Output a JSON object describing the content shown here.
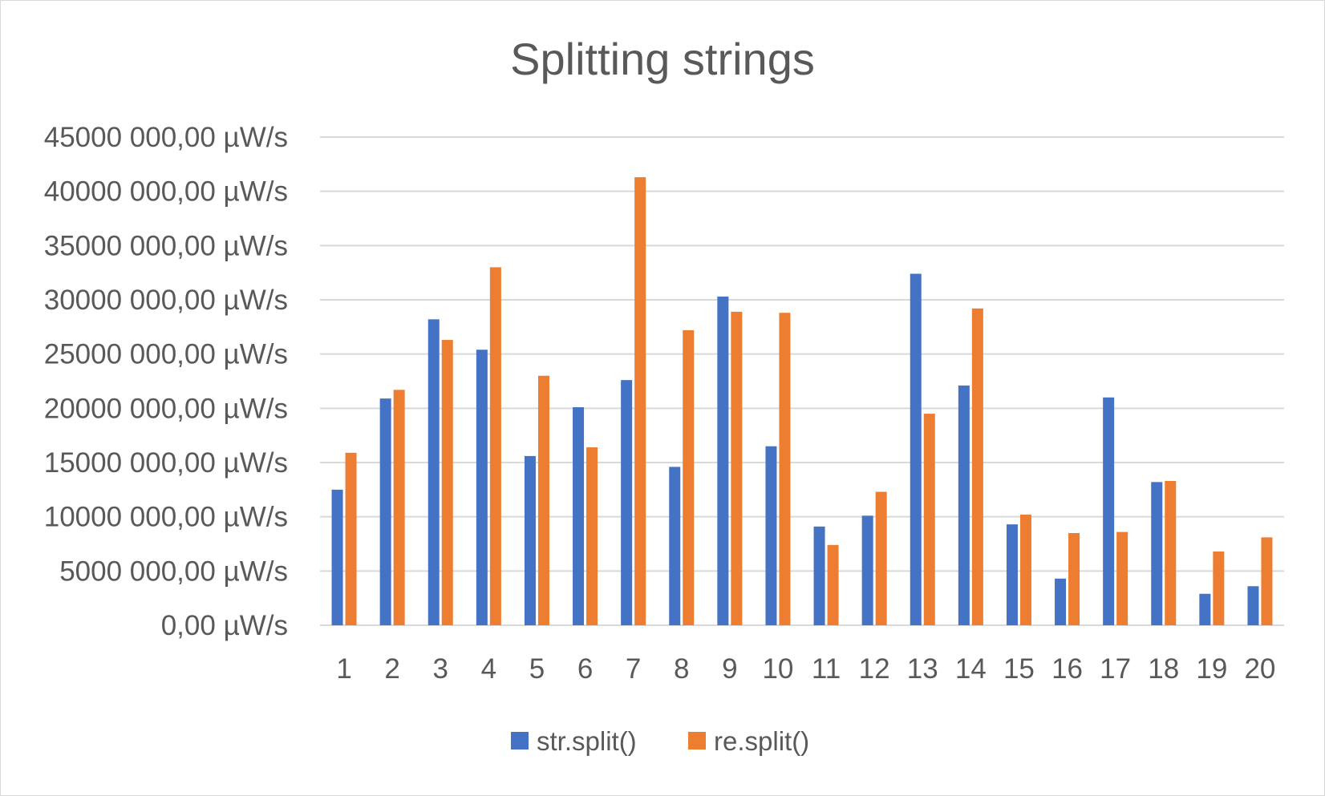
{
  "chart_data": {
    "type": "bar",
    "title": "Splitting strings",
    "xlabel": "",
    "ylabel": "",
    "categories": [
      "1",
      "2",
      "3",
      "4",
      "5",
      "6",
      "7",
      "8",
      "9",
      "10",
      "11",
      "12",
      "13",
      "14",
      "15",
      "16",
      "17",
      "18",
      "19",
      "20"
    ],
    "y_ticks": [
      "0,00 µW/s",
      "5000 000,00 µW/s",
      "10000 000,00 µW/s",
      "15000 000,00 µW/s",
      "20000 000,00 µW/s",
      "25000 000,00 µW/s",
      "30000 000,00 µW/s",
      "35000 000,00 µW/s",
      "40000 000,00 µW/s",
      "45000 000,00 µW/s"
    ],
    "ylim": [
      0,
      45000000
    ],
    "grid": true,
    "legend_position": "bottom",
    "series": [
      {
        "name": "str.split()",
        "color": "#4472c4",
        "values": [
          12500000,
          20900000,
          28200000,
          25400000,
          15600000,
          20100000,
          22600000,
          14600000,
          30300000,
          16500000,
          9100000,
          10100000,
          32400000,
          22100000,
          9300000,
          4300000,
          21000000,
          13200000,
          2900000,
          3600000
        ]
      },
      {
        "name": "re.split()",
        "color": "#ed7d31",
        "values": [
          15900000,
          21700000,
          26300000,
          33000000,
          23000000,
          16400000,
          41300000,
          27200000,
          28900000,
          28800000,
          7400000,
          12300000,
          19500000,
          29200000,
          10200000,
          8500000,
          8600000,
          13300000,
          6800000,
          8100000
        ]
      }
    ]
  }
}
